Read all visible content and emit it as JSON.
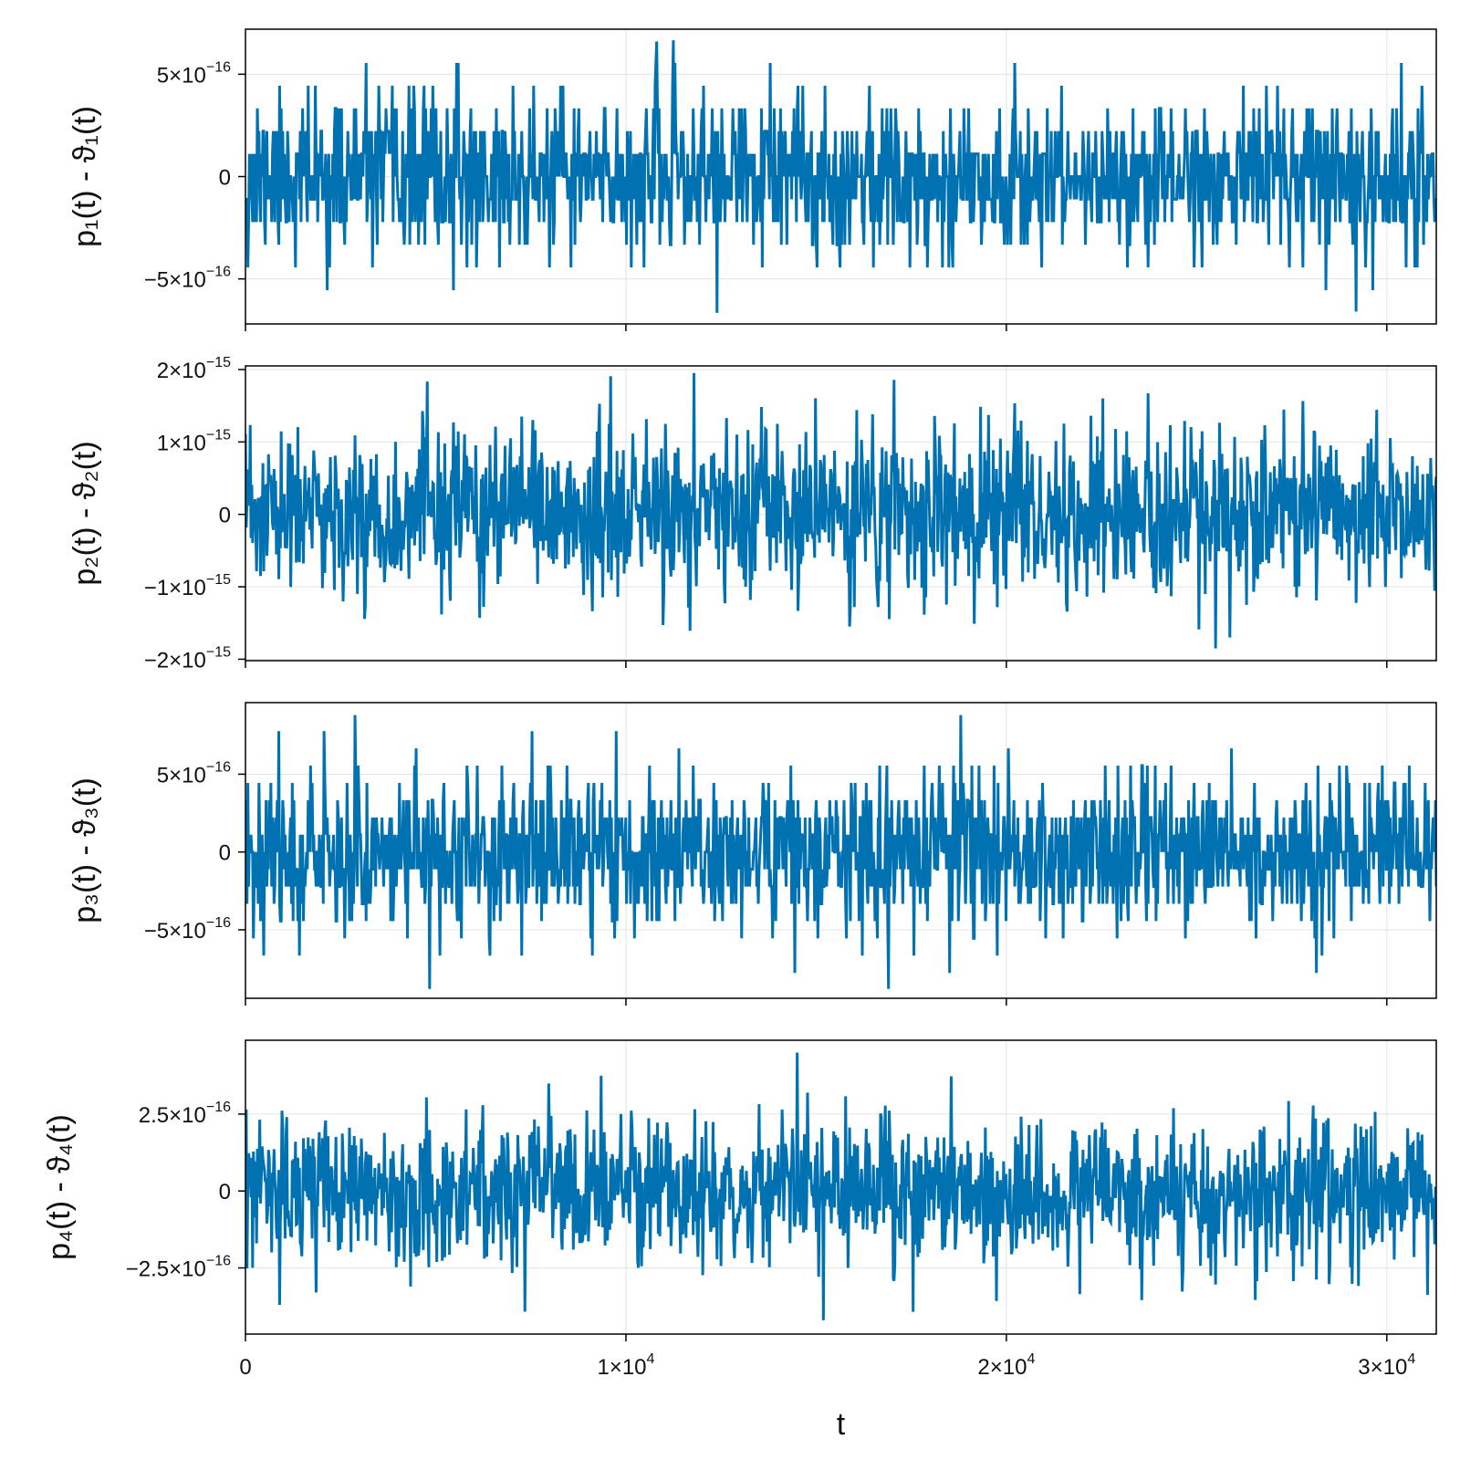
{
  "chart_data": [
    {
      "type": "line",
      "ylabel": "p₁(t) - ϑ₁(t)",
      "xlabel": "",
      "xlim": [
        0,
        31300
      ],
      "ylim": [
        -7.2e-16,
        7.2e-16
      ],
      "x_ticks": [
        {
          "value": 0,
          "label": ""
        },
        {
          "value": 10000,
          "label": ""
        },
        {
          "value": 20000,
          "label": ""
        },
        {
          "value": 30000,
          "label": ""
        }
      ],
      "y_ticks": [
        {
          "value": 5e-16,
          "mant": "5",
          "exp": "−16"
        },
        {
          "value": 0,
          "mant": "0",
          "exp": ""
        },
        {
          "value": -5e-16,
          "mant": "−5",
          "exp": "−16"
        }
      ],
      "grid": true,
      "color": "#0072b2",
      "noise": {
        "n": 1500,
        "sd": 1.9e-16,
        "quantum": 1.11e-16,
        "max": 6.7e-16,
        "min": -6.7e-16,
        "seed": 11
      },
      "peaks": [
        {
          "x": 10800,
          "y": 6.6e-16
        },
        {
          "x": 29200,
          "y": -6.6e-16
        }
      ]
    },
    {
      "type": "line",
      "ylabel": "p₂(t) - ϑ₂(t)",
      "xlabel": "",
      "xlim": [
        0,
        31300
      ],
      "ylim": [
        -2.02e-15,
        2.05e-15
      ],
      "x_ticks": [
        {
          "value": 0,
          "label": ""
        },
        {
          "value": 10000,
          "label": ""
        },
        {
          "value": 20000,
          "label": ""
        },
        {
          "value": 30000,
          "label": ""
        }
      ],
      "y_ticks": [
        {
          "value": 2e-15,
          "mant": "2",
          "exp": "−15"
        },
        {
          "value": 1e-15,
          "mant": "1",
          "exp": "−15"
        },
        {
          "value": 0,
          "mant": "0",
          "exp": ""
        },
        {
          "value": -1e-15,
          "mant": "−1",
          "exp": "−15"
        },
        {
          "value": -2e-15,
          "mant": "−2",
          "exp": "−15"
        }
      ],
      "grid": true,
      "color": "#0072b2",
      "noise": {
        "n": 1500,
        "sd": 5.6e-16,
        "quantum": 0,
        "max": 1.95e-15,
        "min": -1.85e-15,
        "seed": 23
      },
      "peaks": [
        {
          "x": 11800,
          "y": 1.95e-15
        },
        {
          "x": 25500,
          "y": -1.85e-15
        }
      ]
    },
    {
      "type": "line",
      "ylabel": "p₃(t) - ϑ₃(t)",
      "xlabel": "",
      "xlim": [
        0,
        31300
      ],
      "ylim": [
        -9.4e-16,
        9.6e-16
      ],
      "x_ticks": [
        {
          "value": 0,
          "label": ""
        },
        {
          "value": 10000,
          "label": ""
        },
        {
          "value": 20000,
          "label": ""
        },
        {
          "value": 30000,
          "label": ""
        }
      ],
      "y_ticks": [
        {
          "value": 5e-16,
          "mant": "5",
          "exp": "−16"
        },
        {
          "value": 0,
          "mant": "0",
          "exp": ""
        },
        {
          "value": -5e-16,
          "mant": "−5",
          "exp": "−16"
        }
      ],
      "grid": true,
      "color": "#0072b2",
      "noise": {
        "n": 1500,
        "sd": 2.5e-16,
        "quantum": 1.11e-16,
        "max": 8.9e-16,
        "min": -8.9e-16,
        "seed": 37
      },
      "peaks": [
        {
          "x": 2870,
          "y": 8.8e-16
        },
        {
          "x": 18800,
          "y": 8.8e-16
        },
        {
          "x": 4850,
          "y": -8.8e-16
        },
        {
          "x": 16900,
          "y": -8.8e-16
        }
      ]
    },
    {
      "type": "line",
      "ylabel": "p₄(t) - ϑ₄(t)",
      "xlabel": "t",
      "xlim": [
        0,
        31300
      ],
      "ylim": [
        -4.65e-16,
        4.9e-16
      ],
      "x_ticks": [
        {
          "value": 0,
          "mant": "0",
          "exp": ""
        },
        {
          "value": 10000,
          "mant": "1",
          "exp": "4"
        },
        {
          "value": 20000,
          "mant": "2",
          "exp": "4"
        },
        {
          "value": 30000,
          "mant": "3",
          "exp": "4"
        }
      ],
      "y_ticks": [
        {
          "value": 2.5e-16,
          "mant": "2.5",
          "exp": "−16"
        },
        {
          "value": 0,
          "mant": "0",
          "exp": ""
        },
        {
          "value": -2.5e-16,
          "mant": "−2.5",
          "exp": "−16"
        }
      ],
      "grid": true,
      "color": "#0072b2",
      "noise": {
        "n": 1500,
        "sd": 1.15e-16,
        "quantum": 0,
        "max": 4.5e-16,
        "min": -4.2e-16,
        "seed": 53
      },
      "peaks": [
        {
          "x": 14500,
          "y": 4.5e-16
        },
        {
          "x": 15200,
          "y": -4.2e-16
        },
        {
          "x": 900,
          "y": -3.7e-16
        }
      ]
    }
  ]
}
